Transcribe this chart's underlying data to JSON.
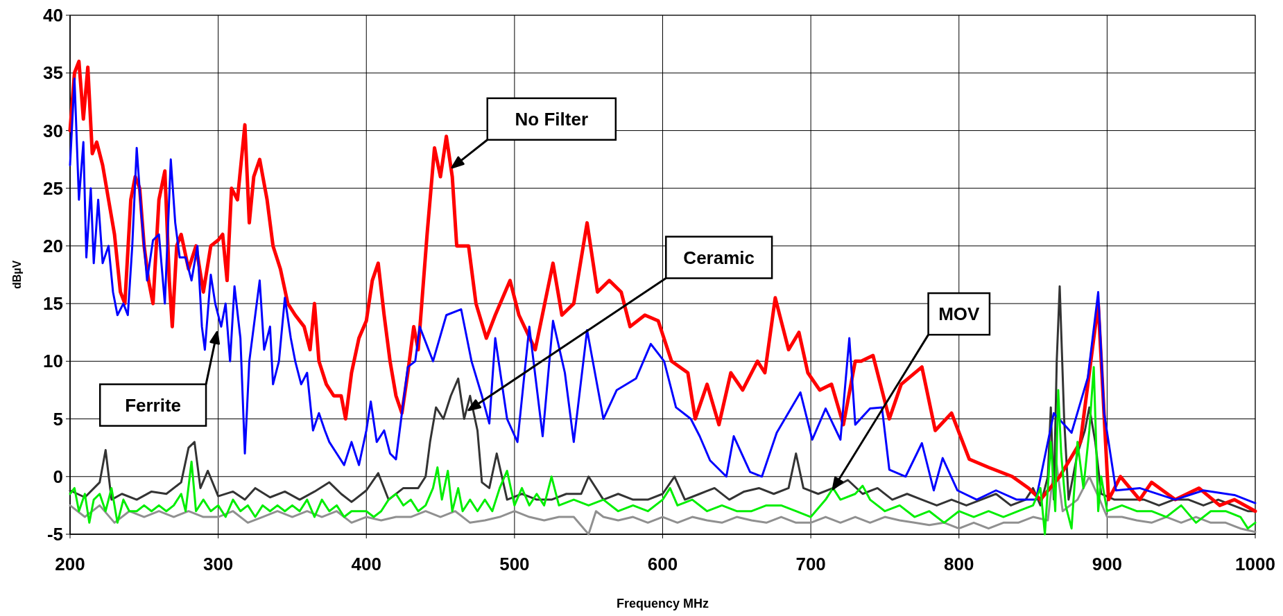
{
  "chart_data": {
    "type": "line",
    "xlabel": "Frequency MHz",
    "ylabel": "dBµV",
    "xlim": [
      200,
      1000
    ],
    "ylim": [
      -5,
      40
    ],
    "xticks": [
      200,
      300,
      400,
      500,
      600,
      700,
      800,
      900,
      1000
    ],
    "yticks": [
      -5,
      0,
      5,
      10,
      15,
      20,
      25,
      30,
      35,
      40
    ],
    "grid": true,
    "line_style": "solid",
    "annotations": [
      "No Filter",
      "Ferrite",
      "Ceramic",
      "MOV"
    ],
    "series": [
      {
        "color": "#ff0000",
        "x": [
          200,
          203,
          206,
          209,
          212,
          215,
          218,
          222,
          226,
          230,
          234,
          237,
          241,
          244,
          247,
          250,
          253,
          256,
          260,
          264,
          267,
          269,
          272,
          275,
          280,
          285,
          290,
          295,
          300,
          303,
          306,
          309,
          313,
          318,
          321,
          324,
          328,
          333,
          337,
          342,
          347,
          352,
          358,
          362,
          365,
          368,
          373,
          378,
          383,
          386,
          390,
          395,
          400,
          404,
          408,
          412,
          416,
          420,
          424,
          428,
          432,
          435,
          438,
          441,
          446,
          450,
          454,
          458,
          461,
          469,
          474,
          481,
          487,
          497,
          503,
          514,
          526,
          532,
          540,
          549,
          556,
          564,
          572,
          578,
          588,
          597,
          606,
          617,
          622,
          630,
          638,
          646,
          654,
          664,
          669,
          676,
          685,
          692,
          698,
          706,
          714,
          722,
          730,
          734,
          742,
          753,
          761,
          775,
          784,
          795,
          807,
          820,
          836,
          847,
          855,
          868,
          882,
          894,
          901,
          909,
          922,
          930,
          946,
          962,
          976,
          986,
          1000
        ],
        "values": [
          30,
          35,
          36,
          31,
          35.5,
          28,
          29,
          27,
          24,
          21,
          16,
          15,
          24,
          26,
          25,
          20,
          17,
          15,
          24,
          26.5,
          17,
          13,
          20,
          21,
          18,
          20,
          16,
          20,
          20.5,
          21,
          17,
          25,
          24,
          30.5,
          22,
          26,
          27.5,
          24,
          20,
          18,
          15,
          14,
          13,
          11,
          15,
          10,
          8,
          7,
          7,
          5,
          9,
          12,
          13.5,
          17,
          18.5,
          14,
          10,
          7,
          5.5,
          9,
          13,
          11,
          16,
          21,
          28.5,
          26,
          29.5,
          26,
          20,
          20,
          15,
          12,
          14,
          17,
          14,
          11,
          18.5,
          14,
          15,
          22,
          16,
          17,
          16,
          13,
          14,
          13.5,
          10,
          9,
          5,
          8,
          4.5,
          9,
          7.5,
          10,
          9,
          15.5,
          11,
          12.5,
          9,
          7.5,
          8,
          4.5,
          10,
          10,
          10.5,
          5,
          8,
          9.5,
          4,
          5.5,
          1.5,
          0.8,
          0,
          -1,
          -2,
          0,
          3,
          15,
          -2,
          0,
          -2,
          -0.5,
          -2,
          -1,
          -2.5,
          -2,
          -3
        ]
      },
      {
        "color": "#0000ff",
        "x": [
          200,
          203,
          206,
          209,
          211,
          214,
          216,
          219,
          222,
          226,
          229,
          232,
          236,
          239,
          242,
          245,
          248,
          252,
          256,
          260,
          264,
          268,
          271,
          274,
          278,
          282,
          286,
          289,
          291,
          295,
          298,
          302,
          305,
          308,
          311,
          315,
          318,
          321,
          325,
          328,
          331,
          335,
          337,
          341,
          345,
          349,
          352,
          356,
          360,
          364,
          368,
          372,
          375,
          380,
          385,
          390,
          395,
          400,
          403,
          407,
          412,
          416,
          420,
          424,
          428,
          433,
          436,
          445,
          454,
          464,
          471,
          478,
          483,
          487,
          495,
          502,
          510,
          519,
          526,
          534,
          540,
          549,
          560,
          569,
          582,
          592,
          601,
          609,
          619,
          625,
          632,
          643,
          648,
          659,
          667,
          677,
          693,
          701,
          710,
          720,
          726,
          730,
          740,
          748,
          753,
          764,
          775,
          783,
          789,
          799,
          812,
          825,
          839,
          852,
          864,
          876,
          887,
          894,
          898,
          906,
          922,
          946,
          965,
          986,
          1000
        ],
        "values": [
          27,
          34.5,
          24,
          29,
          19,
          25,
          18.5,
          24,
          18.5,
          20,
          16,
          14,
          15,
          14,
          20,
          28.5,
          23,
          17,
          20.5,
          21,
          15,
          27.5,
          22,
          19,
          19,
          17,
          20,
          13,
          11,
          17.5,
          15,
          13,
          15,
          10,
          16.5,
          12,
          2,
          10,
          14,
          17,
          11,
          13,
          8,
          10,
          15.5,
          12,
          10,
          8,
          9,
          4,
          5.5,
          4,
          3,
          2,
          1,
          3,
          1,
          4,
          6.5,
          3,
          4,
          2,
          1.5,
          5.5,
          9.5,
          10,
          13,
          10,
          14,
          14.5,
          10,
          7,
          4.6,
          12,
          5,
          3,
          13,
          3.5,
          13.5,
          9,
          3,
          12.7,
          5,
          7.5,
          8.5,
          11.5,
          10,
          6,
          5,
          3.5,
          1.4,
          0,
          3.5,
          0.4,
          0,
          3.8,
          7.3,
          3.2,
          5.9,
          3.2,
          12,
          4.5,
          5.9,
          6,
          0.6,
          0,
          2.9,
          -1.2,
          1.6,
          -1.2,
          -2,
          -1.2,
          -2,
          -2,
          5.5,
          3.8,
          8.6,
          16,
          5.5,
          -1.2,
          -1,
          -2,
          -1.2,
          -1.6,
          -2.3
        ]
      },
      {
        "color": "#333333",
        "x": [
          200,
          210,
          220,
          224,
          228,
          235,
          245,
          255,
          265,
          275,
          280,
          284,
          288,
          293,
          300,
          310,
          318,
          325,
          335,
          345,
          355,
          365,
          375,
          383,
          390,
          400,
          408,
          415,
          425,
          435,
          440,
          443,
          447,
          452,
          457,
          462,
          466,
          470,
          475,
          478,
          483,
          488,
          495,
          505,
          515,
          525,
          535,
          545,
          550,
          560,
          570,
          580,
          590,
          600,
          608,
          615,
          625,
          635,
          645,
          655,
          665,
          675,
          685,
          690,
          695,
          705,
          715,
          725,
          735,
          745,
          755,
          765,
          775,
          785,
          795,
          805,
          815,
          825,
          835,
          845,
          850,
          855,
          860,
          862,
          864,
          866,
          868,
          871,
          874,
          880,
          885,
          888,
          892,
          896,
          905,
          915,
          925,
          935,
          945,
          955,
          965,
          975,
          985,
          995,
          1000
        ],
        "values": [
          -1.2,
          -1.8,
          -0.5,
          2.3,
          -2,
          -1.5,
          -2,
          -1.3,
          -1.5,
          -0.5,
          2.5,
          3,
          -1,
          0.5,
          -1.7,
          -1.3,
          -2,
          -1,
          -1.8,
          -1.3,
          -2,
          -1.3,
          -0.5,
          -1.5,
          -2.2,
          -1.2,
          0.3,
          -2,
          -1,
          -1,
          0,
          3,
          6,
          5,
          7,
          8.5,
          5,
          7,
          4,
          -0.5,
          -1,
          2,
          -2,
          -1.5,
          -2,
          -2,
          -1.5,
          -1.5,
          0,
          -2,
          -1.5,
          -2,
          -2,
          -1.5,
          0,
          -2,
          -1.5,
          -1,
          -2,
          -1.3,
          -1,
          -1.5,
          -1,
          2,
          -1,
          -1.5,
          -1,
          -0.3,
          -1.5,
          -1,
          -2,
          -1.5,
          -2,
          -2.5,
          -2,
          -2.5,
          -2,
          -1.5,
          -2.5,
          -2,
          -1,
          -2.5,
          0,
          6,
          -2,
          10,
          16.5,
          5,
          -2,
          2,
          4,
          6,
          3,
          -1.5,
          -2,
          -2,
          -2,
          -2.5,
          -2,
          -2,
          -2.5,
          -2,
          -2.5,
          -3,
          -3
        ]
      },
      {
        "color": "#909090",
        "x": [
          200,
          210,
          220,
          230,
          240,
          250,
          260,
          270,
          280,
          290,
          300,
          310,
          320,
          330,
          340,
          350,
          360,
          370,
          380,
          390,
          400,
          410,
          420,
          430,
          440,
          450,
          460,
          470,
          480,
          490,
          500,
          510,
          520,
          530,
          540,
          550,
          555,
          560,
          570,
          580,
          590,
          600,
          610,
          620,
          630,
          640,
          650,
          660,
          670,
          680,
          690,
          700,
          710,
          720,
          730,
          740,
          750,
          760,
          770,
          780,
          790,
          800,
          810,
          820,
          830,
          840,
          850,
          860,
          865,
          870,
          880,
          888,
          895,
          900,
          910,
          920,
          930,
          940,
          950,
          960,
          970,
          980,
          990,
          1000
        ],
        "values": [
          -2.5,
          -3.5,
          -2.5,
          -4,
          -3,
          -3.5,
          -3,
          -3.5,
          -3,
          -3.5,
          -3.5,
          -3,
          -4,
          -3.5,
          -3,
          -3.5,
          -3,
          -3.5,
          -3,
          -4,
          -3.5,
          -3.8,
          -3.5,
          -3.5,
          -3,
          -3.5,
          -3,
          -4,
          -3.8,
          -3.5,
          -3,
          -3.5,
          -3.8,
          -3.5,
          -3.5,
          -5,
          -3,
          -3.5,
          -3.8,
          -3.5,
          -4,
          -3.5,
          -4,
          -3.5,
          -3.8,
          -4,
          -3.5,
          -3.8,
          -4,
          -3.5,
          -4,
          -4,
          -3.5,
          -4,
          -3.5,
          -4,
          -3.5,
          -3.8,
          -4,
          -4.2,
          -4,
          -4.5,
          -4,
          -4.5,
          -4,
          -4,
          -3.5,
          -3.8,
          2,
          -3,
          -2,
          0,
          -2,
          -3.5,
          -3.5,
          -3.8,
          -4,
          -3.5,
          -4,
          -3.5,
          -4,
          -4,
          -4.5,
          -4.8
        ]
      },
      {
        "color": "#00ee00",
        "x": [
          200,
          203,
          206,
          210,
          213,
          216,
          220,
          224,
          228,
          232,
          236,
          240,
          245,
          250,
          255,
          260,
          265,
          270,
          275,
          278,
          282,
          285,
          290,
          295,
          300,
          305,
          310,
          315,
          320,
          325,
          330,
          335,
          340,
          345,
          350,
          355,
          360,
          365,
          370,
          375,
          380,
          385,
          390,
          395,
          400,
          405,
          410,
          415,
          420,
          425,
          430,
          435,
          440,
          445,
          448,
          451,
          455,
          458,
          462,
          465,
          470,
          475,
          480,
          485,
          490,
          495,
          500,
          505,
          510,
          515,
          520,
          525,
          530,
          540,
          550,
          560,
          570,
          580,
          590,
          600,
          605,
          610,
          620,
          630,
          640,
          650,
          660,
          670,
          680,
          690,
          700,
          710,
          715,
          720,
          730,
          735,
          740,
          750,
          760,
          770,
          780,
          790,
          800,
          810,
          820,
          830,
          840,
          850,
          855,
          858,
          862,
          865,
          867,
          869,
          872,
          876,
          880,
          884,
          888,
          891,
          894,
          896,
          900,
          910,
          920,
          930,
          940,
          950,
          960,
          970,
          980,
          990,
          995,
          1000
        ],
        "values": [
          -1.5,
          -1,
          -3,
          -1.5,
          -4,
          -2,
          -1.5,
          -3,
          -1,
          -4,
          -2,
          -3,
          -3,
          -2.5,
          -3,
          -2.5,
          -3,
          -2.5,
          -1.5,
          -3,
          1.3,
          -3,
          -2,
          -3,
          -2.5,
          -3.5,
          -2,
          -3,
          -2.5,
          -3.5,
          -2.5,
          -3,
          -2.5,
          -3,
          -2.5,
          -3,
          -2,
          -3.5,
          -2,
          -3,
          -2.5,
          -3.5,
          -3,
          -3,
          -3,
          -3.5,
          -3,
          -2,
          -1.5,
          -2.5,
          -2,
          -3,
          -2.5,
          -1,
          0.8,
          -2,
          0.5,
          -3,
          -1,
          -3,
          -2,
          -3,
          -2,
          -3,
          -1,
          0.5,
          -2.5,
          -1,
          -2.5,
          -1.5,
          -2.5,
          0,
          -2.5,
          -2,
          -2.5,
          -2,
          -3,
          -2.5,
          -3,
          -2,
          -1,
          -2.5,
          -2,
          -3,
          -2.5,
          -3,
          -3,
          -2.5,
          -2.5,
          -3,
          -3.5,
          -2,
          -1,
          -2,
          -1.5,
          -0.8,
          -2,
          -3,
          -2.5,
          -3.5,
          -3,
          -4,
          -3,
          -3.5,
          -3,
          -3.5,
          -3,
          -2.5,
          -1,
          -5,
          3,
          -3,
          7.5,
          2,
          -2.5,
          -4.5,
          3,
          -1,
          4,
          9.5,
          -3,
          0,
          -3,
          -2.5,
          -3,
          -3,
          -3.5,
          -2.5,
          -4,
          -3,
          -3,
          -3.5,
          -4.5,
          -4
        ]
      }
    ]
  }
}
